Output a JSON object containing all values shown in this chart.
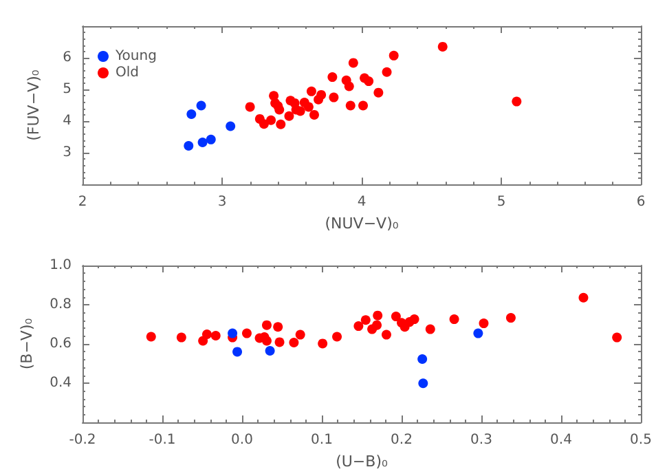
{
  "chart_data": [
    {
      "type": "scatter",
      "xlabel": "(NUV−V)₀",
      "ylabel": "(FUV−V)₀",
      "xlim": [
        2,
        6
      ],
      "xticks": [
        2,
        3,
        4,
        5,
        6
      ],
      "ylim": [
        2,
        7
      ],
      "yticks": [
        {
          "value": 2,
          "label": null
        },
        3,
        4,
        5,
        6,
        {
          "value": 7,
          "label": null
        }
      ],
      "grid": false,
      "legend": "top left",
      "marker": "circle",
      "series": [
        {
          "name": "Young",
          "color": "#0033ff",
          "x": [
            2.76,
            2.78,
            2.85,
            2.86,
            2.92,
            3.06
          ],
          "values": [
            3.22,
            4.22,
            4.49,
            3.33,
            3.42,
            3.84
          ]
        },
        {
          "name": "Old",
          "color": "#ff0000",
          "x": [
            3.2,
            3.27,
            3.3,
            3.35,
            3.37,
            3.38,
            3.4,
            3.41,
            3.42,
            3.48,
            3.49,
            3.52,
            3.53,
            3.56,
            3.59,
            3.62,
            3.64,
            3.66,
            3.69,
            3.71,
            3.79,
            3.8,
            3.89,
            3.91,
            3.92,
            3.94,
            4.01,
            4.02,
            4.05,
            4.12,
            4.18,
            4.23,
            4.58,
            5.11
          ],
          "values": [
            4.45,
            4.07,
            3.91,
            4.03,
            4.8,
            4.57,
            4.48,
            4.36,
            3.9,
            4.16,
            4.65,
            4.57,
            4.36,
            4.32,
            4.59,
            4.45,
            4.94,
            4.2,
            4.68,
            4.83,
            5.39,
            4.75,
            5.29,
            5.1,
            4.49,
            5.84,
            4.49,
            5.36,
            5.26,
            4.9,
            5.55,
            6.07,
            6.35,
            4.62
          ]
        }
      ]
    },
    {
      "type": "scatter",
      "xlabel": "(U−B)₀",
      "ylabel": "(B−V)₀",
      "xlim": [
        -0.2,
        0.5
      ],
      "xticks": [
        -0.2,
        -0.1,
        {
          "value": 0,
          "label": "0.0"
        },
        0.1,
        0.2,
        0.3,
        0.4,
        0.5
      ],
      "ylim": [
        0.2,
        1.0
      ],
      "yticks": [
        {
          "value": 0.2,
          "label": null
        },
        0.4,
        0.6,
        0.8,
        {
          "value": 1,
          "label": "1.0"
        }
      ],
      "grid": false,
      "legend": false,
      "marker": "circle",
      "series": [
        {
          "color": "#ff0000",
          "x": [
            -0.114,
            -0.076,
            -0.049,
            -0.044,
            -0.033,
            -0.012,
            0.006,
            0.022,
            0.028,
            0.031,
            0.031,
            0.045,
            0.047,
            0.065,
            0.073,
            0.101,
            0.119,
            0.146,
            0.155,
            0.163,
            0.169,
            0.17,
            0.181,
            0.193,
            0.2,
            0.204,
            0.21,
            0.216,
            0.236,
            0.266,
            0.303,
            0.337,
            0.428,
            0.47
          ],
          "values": [
            0.637,
            0.633,
            0.616,
            0.649,
            0.642,
            0.633,
            0.654,
            0.63,
            0.635,
            0.696,
            0.616,
            0.687,
            0.609,
            0.607,
            0.647,
            0.602,
            0.637,
            0.691,
            0.722,
            0.675,
            0.696,
            0.745,
            0.647,
            0.74,
            0.708,
            0.687,
            0.712,
            0.726,
            0.675,
            0.726,
            0.705,
            0.733,
            0.836,
            0.633
          ]
        },
        {
          "color": "#0033ff",
          "x": [
            -0.012,
            -0.006,
            0.035,
            0.226,
            0.227,
            0.296
          ],
          "values": [
            0.654,
            0.56,
            0.565,
            0.523,
            0.399,
            0.654
          ]
        }
      ]
    }
  ]
}
